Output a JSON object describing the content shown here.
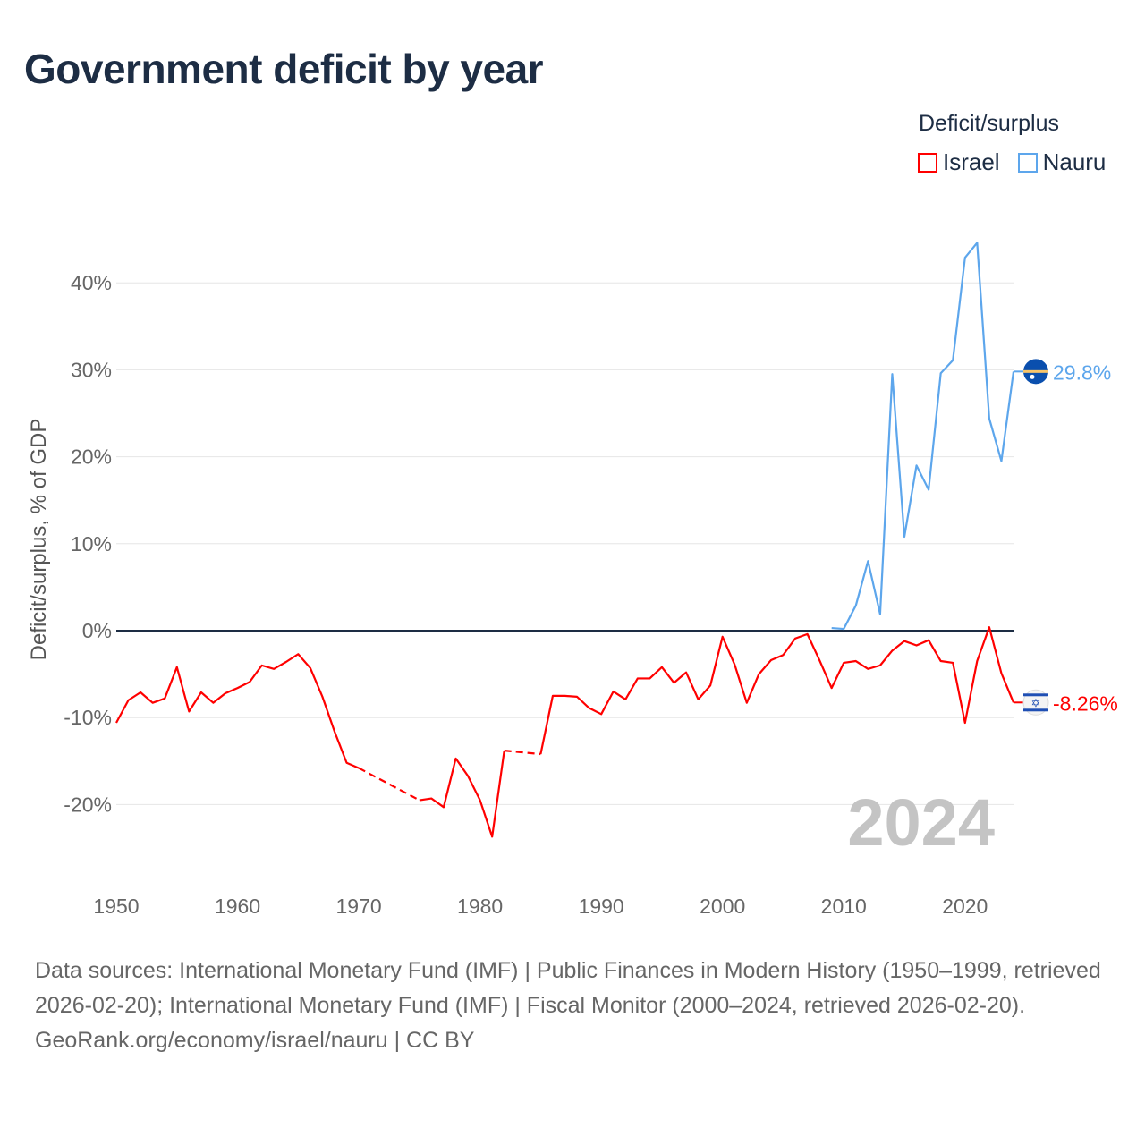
{
  "title": "Government deficit by year",
  "legend": {
    "title": "Deficit/surplus",
    "items": [
      {
        "label": "Israel",
        "color": "#ff0000"
      },
      {
        "label": "Nauru",
        "color": "#5da6ec"
      }
    ]
  },
  "year_watermark": "2024",
  "footer": {
    "sources": "Data sources: International Monetary Fund (IMF) | Public Finances in Modern History (1950–1999, retrieved 2026-02-20); International Monetary Fund (IMF) | Fiscal Monitor (2000–2024, retrieved 2026-02-20).",
    "credit": "GeoRank.org/economy/israel/nauru | CC BY"
  },
  "chart_data": {
    "type": "line",
    "title": "Government deficit by year",
    "xlabel": "",
    "ylabel": "Deficit/surplus, % of GDP",
    "xlim": [
      1950,
      2024
    ],
    "ylim": [
      -25,
      45
    ],
    "x_ticks": [
      1950,
      1960,
      1970,
      1980,
      1990,
      2000,
      2010,
      2020
    ],
    "x_tick_labels": [
      "1950",
      "1960",
      "1970",
      "1980",
      "1990",
      "2000",
      "2010",
      "2020"
    ],
    "y_ticks": [
      -20,
      -10,
      0,
      10,
      20,
      30,
      40
    ],
    "y_tick_labels": [
      "-20%",
      "-10%",
      "0%",
      "10%",
      "20%",
      "30%",
      "40%"
    ],
    "grid": true,
    "legend_position": "top-right",
    "series": [
      {
        "name": "Israel",
        "color": "#ff0000",
        "end_label": "-8.26%",
        "x_start": 1950,
        "values": [
          -10.6,
          -8.0,
          -7.1,
          -8.3,
          -7.8,
          -4.2,
          -9.3,
          -7.1,
          -8.3,
          -7.2,
          -6.6,
          -5.9,
          -4.0,
          -4.4,
          -3.6,
          -2.7,
          -4.3,
          -7.6,
          -11.6,
          -15.2,
          -15.8,
          null,
          null,
          null,
          null,
          -19.5,
          -19.3,
          -20.3,
          -14.7,
          -16.7,
          -19.5,
          -23.7,
          -13.8,
          null,
          null,
          -14.2,
          -7.5,
          -7.5,
          -7.6,
          -8.9,
          -9.6,
          -7.0,
          -7.9,
          -5.5,
          -5.5,
          -4.2,
          -6.0,
          -4.8,
          -7.9,
          -6.3,
          -0.7,
          -3.9,
          -8.3,
          -5.0,
          -3.4,
          -2.8,
          -0.9,
          -0.4,
          -3.4,
          -6.6,
          -3.7,
          -3.5,
          -4.4,
          -4.0,
          -2.3,
          -1.2,
          -1.7,
          -1.1,
          -3.5,
          -3.7,
          -10.6,
          -3.5,
          0.4,
          -4.9,
          -8.26
        ]
      },
      {
        "name": "Nauru",
        "color": "#5da6ec",
        "end_label": "29.8%",
        "x_start": 2009,
        "values": [
          0.3,
          0.2,
          2.9,
          8.0,
          1.9,
          29.5,
          10.8,
          19.0,
          16.2,
          29.6,
          31.1,
          42.9,
          44.6,
          24.4,
          19.5,
          29.8
        ]
      }
    ]
  }
}
